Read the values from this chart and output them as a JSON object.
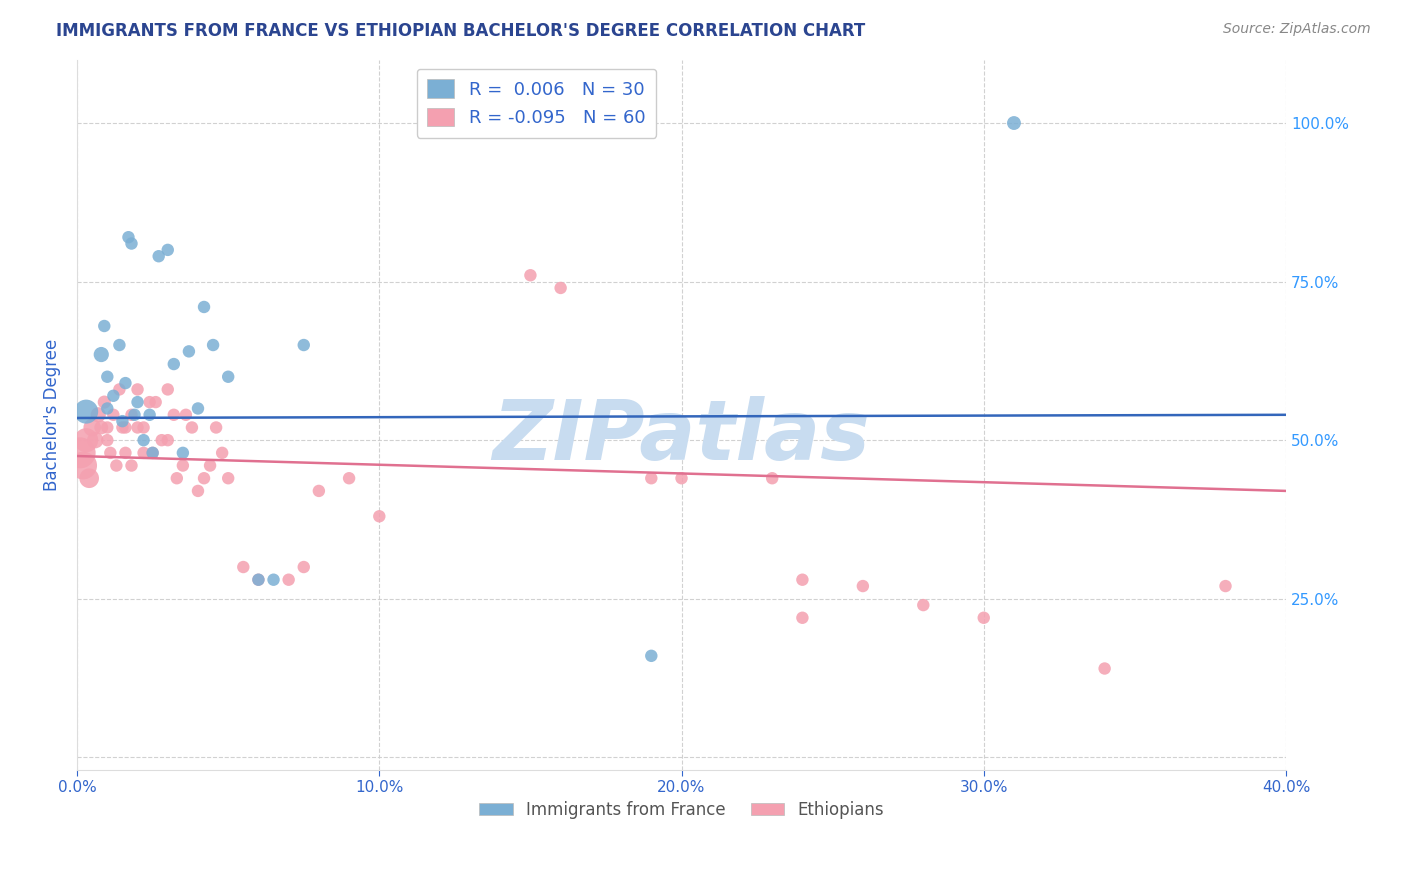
{
  "title": "IMMIGRANTS FROM FRANCE VS ETHIOPIAN BACHELOR'S DEGREE CORRELATION CHART",
  "source": "Source: ZipAtlas.com",
  "ylabel": "Bachelor's Degree",
  "xlim": [
    0.0,
    0.4
  ],
  "ylim": [
    -0.02,
    1.1
  ],
  "xticks": [
    0.0,
    0.1,
    0.2,
    0.3,
    0.4
  ],
  "xtick_labels": [
    "0.0%",
    "10.0%",
    "20.0%",
    "30.0%",
    "40.0%"
  ],
  "yticks": [
    0.0,
    0.25,
    0.5,
    0.75,
    1.0
  ],
  "ytick_labels_left": [
    "",
    "",
    "",
    "",
    ""
  ],
  "ytick_labels_right": [
    "",
    "25.0%",
    "50.0%",
    "75.0%",
    "100.0%"
  ],
  "blue_color": "#7BAFD4",
  "pink_color": "#F4A0B0",
  "trend_blue": "#3366BB",
  "trend_pink": "#E07090",
  "R_blue": 0.006,
  "N_blue": 30,
  "R_pink": -0.095,
  "N_pink": 60,
  "watermark": "ZIPatlas",
  "watermark_color": "#C8DCF0",
  "blue_scatter_x": [
    0.003,
    0.008,
    0.009,
    0.01,
    0.01,
    0.012,
    0.014,
    0.015,
    0.016,
    0.017,
    0.018,
    0.019,
    0.02,
    0.022,
    0.024,
    0.025,
    0.027,
    0.03,
    0.032,
    0.035,
    0.037,
    0.04,
    0.042,
    0.045,
    0.05,
    0.06,
    0.065,
    0.075,
    0.19,
    0.31
  ],
  "blue_scatter_y": [
    0.545,
    0.635,
    0.68,
    0.55,
    0.6,
    0.57,
    0.65,
    0.53,
    0.59,
    0.82,
    0.81,
    0.54,
    0.56,
    0.5,
    0.54,
    0.48,
    0.79,
    0.8,
    0.62,
    0.48,
    0.64,
    0.55,
    0.71,
    0.65,
    0.6,
    0.28,
    0.28,
    0.65,
    0.16,
    1.0
  ],
  "blue_scatter_size": [
    300,
    120,
    80,
    80,
    80,
    80,
    80,
    80,
    80,
    80,
    80,
    80,
    80,
    80,
    80,
    80,
    80,
    80,
    80,
    80,
    80,
    80,
    80,
    80,
    80,
    80,
    80,
    80,
    80,
    100
  ],
  "pink_scatter_x": [
    0.001,
    0.002,
    0.003,
    0.004,
    0.005,
    0.006,
    0.007,
    0.008,
    0.009,
    0.01,
    0.01,
    0.011,
    0.012,
    0.013,
    0.014,
    0.015,
    0.016,
    0.016,
    0.018,
    0.018,
    0.02,
    0.02,
    0.022,
    0.022,
    0.024,
    0.025,
    0.026,
    0.028,
    0.03,
    0.03,
    0.032,
    0.033,
    0.035,
    0.036,
    0.038,
    0.04,
    0.042,
    0.044,
    0.046,
    0.048,
    0.05,
    0.055,
    0.06,
    0.07,
    0.075,
    0.08,
    0.09,
    0.1,
    0.15,
    0.16,
    0.19,
    0.2,
    0.23,
    0.24,
    0.24,
    0.26,
    0.28,
    0.3,
    0.34,
    0.38
  ],
  "pink_scatter_y": [
    0.48,
    0.46,
    0.5,
    0.44,
    0.52,
    0.5,
    0.54,
    0.52,
    0.56,
    0.5,
    0.52,
    0.48,
    0.54,
    0.46,
    0.58,
    0.52,
    0.52,
    0.48,
    0.54,
    0.46,
    0.58,
    0.52,
    0.52,
    0.48,
    0.56,
    0.48,
    0.56,
    0.5,
    0.5,
    0.58,
    0.54,
    0.44,
    0.46,
    0.54,
    0.52,
    0.42,
    0.44,
    0.46,
    0.52,
    0.48,
    0.44,
    0.3,
    0.28,
    0.28,
    0.3,
    0.42,
    0.44,
    0.38,
    0.76,
    0.74,
    0.44,
    0.44,
    0.44,
    0.28,
    0.22,
    0.27,
    0.24,
    0.22,
    0.14,
    0.27
  ],
  "pink_scatter_size": [
    500,
    400,
    300,
    200,
    160,
    140,
    120,
    100,
    90,
    80,
    80,
    80,
    80,
    80,
    80,
    80,
    80,
    80,
    80,
    80,
    80,
    80,
    80,
    80,
    80,
    80,
    80,
    80,
    80,
    80,
    80,
    80,
    80,
    80,
    80,
    80,
    80,
    80,
    80,
    80,
    80,
    80,
    80,
    80,
    80,
    80,
    80,
    80,
    80,
    80,
    80,
    80,
    80,
    80,
    80,
    80,
    80,
    80,
    80,
    80
  ],
  "blue_trend_x": [
    0.0,
    0.4
  ],
  "blue_trend_y": [
    0.535,
    0.54
  ],
  "pink_trend_x": [
    0.0,
    0.4
  ],
  "pink_trend_y": [
    0.475,
    0.42
  ],
  "title_color": "#2B4590",
  "tick_color": "#3366CC",
  "right_tick_color": "#3399FF",
  "grid_color": "#CCCCCC",
  "background_color": "#FFFFFF",
  "legend_label_color": "#222222",
  "legend_value_color": "#3366CC",
  "bottom_legend_color": "#555555"
}
